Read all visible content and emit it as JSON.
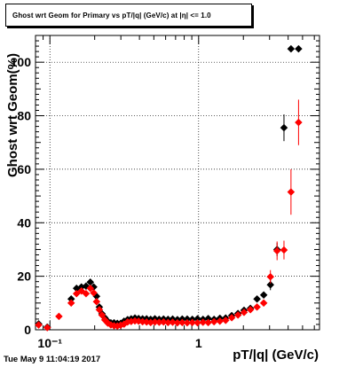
{
  "chart_data": {
    "type": "scatter",
    "title": "Ghost wrt Geom for Primary vs pT/|q| (GeV/c) at |η| <= 1.0",
    "xlabel": "pT/|q| (GeV/c)",
    "ylabel": "Ghost wrt Geom(%)",
    "xscale": "log",
    "xlim": [
      0.08,
      6.5
    ],
    "ylim": [
      0,
      110
    ],
    "grid": true,
    "x_tick_labels": [
      {
        "value": 0.1,
        "label": "10⁻¹"
      },
      {
        "value": 1,
        "label": "1"
      }
    ],
    "y_ticks": [
      0,
      20,
      40,
      60,
      80,
      100
    ],
    "series": [
      {
        "color": "#000000",
        "points": [
          [
            0.084,
            2.2
          ],
          [
            0.096,
            1.0
          ],
          [
            0.139,
            11.5
          ],
          [
            0.151,
            15.5
          ],
          [
            0.163,
            16.0
          ],
          [
            0.175,
            16.3
          ],
          [
            0.187,
            17.8
          ],
          [
            0.197,
            16.0
          ],
          [
            0.206,
            12.5
          ],
          [
            0.215,
            8.5
          ],
          [
            0.224,
            6.0
          ],
          [
            0.234,
            4.5
          ],
          [
            0.245,
            3.2
          ],
          [
            0.257,
            2.6
          ],
          [
            0.27,
            2.6
          ],
          [
            0.284,
            2.4
          ],
          [
            0.299,
            2.4
          ],
          [
            0.315,
            3.2
          ],
          [
            0.333,
            3.8
          ],
          [
            0.352,
            4.1
          ],
          [
            0.373,
            4.4
          ],
          [
            0.395,
            4.2
          ],
          [
            0.42,
            4.1
          ],
          [
            0.447,
            4.1
          ],
          [
            0.476,
            3.9
          ],
          [
            0.508,
            4.1
          ],
          [
            0.543,
            3.9
          ],
          [
            0.581,
            4.0
          ],
          [
            0.623,
            3.9
          ],
          [
            0.669,
            4.0
          ],
          [
            0.72,
            3.8
          ],
          [
            0.776,
            4.0
          ],
          [
            0.838,
            4.0
          ],
          [
            0.907,
            3.9
          ],
          [
            0.983,
            4.1
          ],
          [
            1.07,
            3.9
          ],
          [
            1.16,
            4.2
          ],
          [
            1.27,
            3.9
          ],
          [
            1.39,
            4.3
          ],
          [
            1.52,
            4.4
          ],
          [
            1.67,
            5.3
          ],
          [
            1.84,
            6.1
          ],
          [
            2.02,
            7.3
          ],
          [
            2.23,
            8.0
          ],
          [
            2.47,
            11.5
          ],
          [
            2.74,
            13.0
          ],
          [
            3.04,
            16.8
          ],
          [
            3.37,
            30.0
          ],
          [
            3.75,
            75.5
          ],
          [
            4.18,
            105.0
          ],
          [
            4.7,
            105.0
          ]
        ],
        "yerr": [
          0,
          0,
          0,
          0,
          0,
          0,
          0,
          0,
          0,
          0,
          0,
          0,
          0,
          0,
          0,
          0,
          0,
          0,
          0,
          0,
          0,
          0,
          0,
          0,
          0,
          0,
          0,
          0,
          0,
          0,
          0,
          0,
          0,
          0,
          0,
          0,
          0,
          0,
          0,
          0,
          0,
          0,
          0,
          0,
          0,
          1.2,
          2.0,
          2.5,
          5.0,
          0,
          0
        ]
      },
      {
        "color": "#ff0000",
        "points": [
          [
            0.084,
            1.8
          ],
          [
            0.096,
            0.8
          ],
          [
            0.115,
            5.0
          ],
          [
            0.139,
            10.0
          ],
          [
            0.151,
            13.5
          ],
          [
            0.163,
            14.5
          ],
          [
            0.175,
            13.5
          ],
          [
            0.187,
            15.5
          ],
          [
            0.197,
            13.8
          ],
          [
            0.206,
            10.5
          ],
          [
            0.215,
            7.5
          ],
          [
            0.224,
            5.5
          ],
          [
            0.234,
            3.7
          ],
          [
            0.245,
            2.5
          ],
          [
            0.257,
            1.8
          ],
          [
            0.27,
            1.5
          ],
          [
            0.284,
            1.4
          ],
          [
            0.299,
            1.7
          ],
          [
            0.315,
            2.1
          ],
          [
            0.333,
            2.9
          ],
          [
            0.352,
            3.1
          ],
          [
            0.373,
            3.3
          ],
          [
            0.395,
            3.2
          ],
          [
            0.42,
            3.0
          ],
          [
            0.447,
            2.9
          ],
          [
            0.476,
            2.7
          ],
          [
            0.508,
            2.9
          ],
          [
            0.543,
            2.8
          ],
          [
            0.581,
            2.9
          ],
          [
            0.623,
            2.7
          ],
          [
            0.669,
            2.8
          ],
          [
            0.72,
            2.6
          ],
          [
            0.776,
            2.7
          ],
          [
            0.838,
            2.6
          ],
          [
            0.907,
            2.7
          ],
          [
            0.983,
            2.6
          ],
          [
            1.07,
            2.8
          ],
          [
            1.16,
            2.7
          ],
          [
            1.27,
            3.0
          ],
          [
            1.39,
            3.2
          ],
          [
            1.52,
            3.5
          ],
          [
            1.67,
            4.5
          ],
          [
            1.84,
            5.5
          ],
          [
            2.02,
            6.5
          ],
          [
            2.23,
            7.5
          ],
          [
            2.47,
            8.5
          ],
          [
            2.74,
            10.0
          ],
          [
            3.04,
            19.8
          ],
          [
            3.37,
            29.5
          ],
          [
            3.75,
            29.8
          ],
          [
            4.18,
            51.5
          ],
          [
            4.7,
            77.5
          ]
        ],
        "yerr": [
          0,
          0,
          0,
          0,
          0,
          0,
          0,
          0,
          0,
          0,
          0,
          0,
          0,
          0,
          0,
          0,
          0,
          0,
          0,
          0,
          0,
          0,
          0,
          0,
          0,
          0,
          0,
          0,
          0,
          0,
          0,
          0,
          0,
          0,
          0,
          0,
          0,
          0,
          0,
          0,
          0,
          0,
          0,
          0,
          0,
          0,
          1.2,
          2.5,
          3.5,
          3.5,
          8.5,
          8.5
        ]
      }
    ]
  },
  "timestamp": "Tue May  9 11:04:19 2017"
}
